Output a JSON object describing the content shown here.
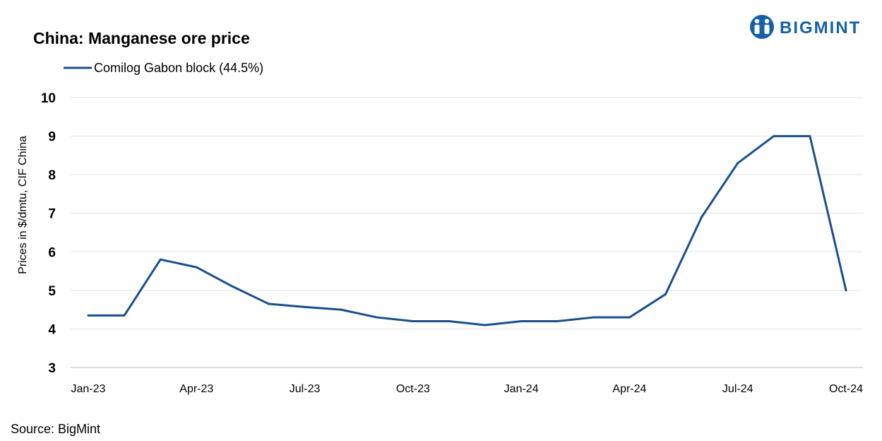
{
  "brand": {
    "name": "BIGMINT",
    "color": "#1560a8"
  },
  "source": "Source:  BigMint",
  "chart_data": {
    "type": "line",
    "title": "China: Manganese ore price",
    "ylabel": "Prices in $/dmtu, CIF China",
    "xlabel": "",
    "ylim": [
      3,
      10
    ],
    "yticks": [
      "3",
      "4",
      "5",
      "6",
      "7",
      "8",
      "9",
      "10"
    ],
    "grid": true,
    "legend_position": "top-left",
    "x": [
      "Jan-23",
      "Feb-23",
      "Mar-23",
      "Apr-23",
      "May-23",
      "Jun-23",
      "Jul-23",
      "Aug-23",
      "Sep-23",
      "Oct-23",
      "Nov-23",
      "Dec-23",
      "Jan-24",
      "Feb-24",
      "Mar-24",
      "Apr-24",
      "May-24",
      "Jun-24",
      "Jul-24",
      "Aug-24",
      "Sep-24",
      "Oct-24"
    ],
    "xtick_labels": [
      "Jan-23",
      "Apr-23",
      "Jul-23",
      "Oct-23",
      "Jan-24",
      "Apr-24",
      "Jul-24",
      "Oct-24"
    ],
    "series": [
      {
        "name": "Comilog Gabon block (44.5%)",
        "color": "#1a4f8e",
        "values": [
          4.35,
          4.35,
          5.8,
          5.6,
          5.1,
          4.65,
          4.57,
          4.5,
          4.3,
          4.2,
          4.2,
          4.1,
          4.2,
          4.2,
          4.3,
          4.3,
          4.9,
          6.9,
          8.3,
          9.0,
          9.0,
          5.0
        ]
      }
    ]
  }
}
